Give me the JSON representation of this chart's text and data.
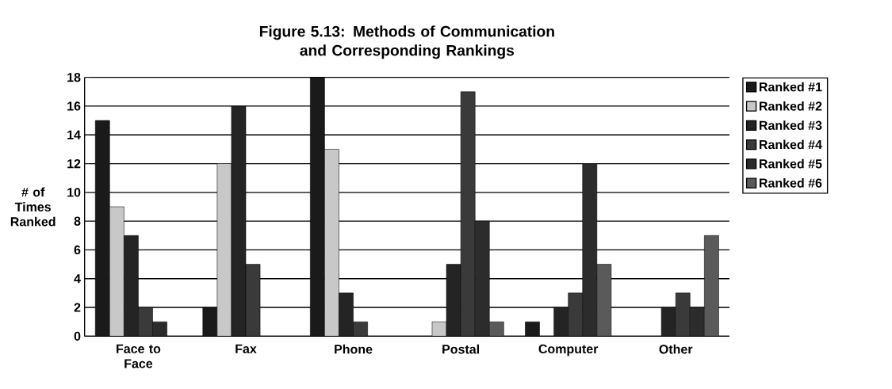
{
  "chart_data": {
    "type": "bar",
    "title": "Figure 5.13: Methods of Communication and Corresponding Rankings",
    "ylabel": "# of Times Ranked",
    "categories": [
      "Face to Face",
      "Fax",
      "Phone",
      "Postal",
      "Computer",
      "Other"
    ],
    "series": [
      {
        "name": "Ranked #1",
        "color": "#1a1a1a",
        "values": [
          15,
          2,
          18,
          null,
          1,
          null
        ]
      },
      {
        "name": "Ranked #2",
        "color": "#c8c8c8",
        "values": [
          9,
          12,
          13,
          1,
          null,
          null
        ]
      },
      {
        "name": "Ranked #3",
        "color": "#242424",
        "values": [
          7,
          16,
          3,
          5,
          2,
          2
        ]
      },
      {
        "name": "Ranked #4",
        "color": "#3a3a3a",
        "values": [
          2,
          5,
          1,
          17,
          3,
          3
        ]
      },
      {
        "name": "Ranked #5",
        "color": "#2c2c2c",
        "values": [
          1,
          null,
          null,
          8,
          12,
          2
        ]
      },
      {
        "name": "Ranked #6",
        "color": "#5a5a5a",
        "values": [
          null,
          null,
          null,
          1,
          5,
          7
        ]
      }
    ],
    "ylim": [
      0,
      18
    ],
    "yticks": [
      0,
      2,
      4,
      6,
      8,
      10,
      12,
      14,
      16,
      18
    ],
    "grid": "y",
    "legend": "right"
  }
}
